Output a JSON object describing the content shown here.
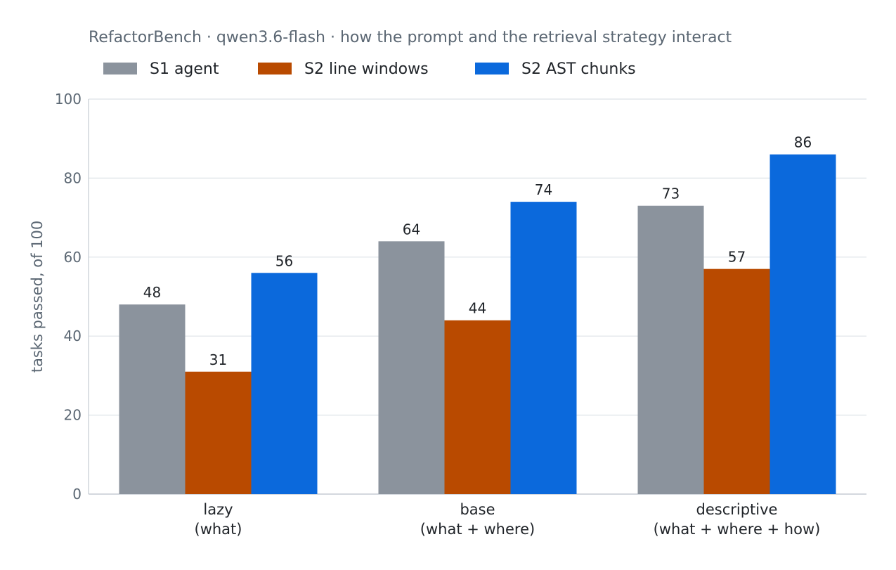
{
  "chart_data": {
    "type": "bar",
    "title": "RefactorBench · qwen3.6-flash · how the prompt and the retrieval strategy interact",
    "ylabel": "tasks passed, of 100",
    "xlabel": "",
    "ylim": [
      0,
      100
    ],
    "yticks": [
      0,
      20,
      40,
      60,
      80,
      100
    ],
    "grid": true,
    "legend_position": "top-left",
    "categories": [
      [
        "lazy",
        "(what)"
      ],
      [
        "base",
        "(what + where)"
      ],
      [
        "descriptive",
        "(what + where + how)"
      ]
    ],
    "series": [
      {
        "name": "S1 agent",
        "color": "#8b939d",
        "values": [
          48,
          64,
          73
        ]
      },
      {
        "name": "S2 line windows",
        "color": "#b94a00",
        "values": [
          31,
          44,
          57
        ]
      },
      {
        "name": "S2 AST chunks",
        "color": "#0b69dc",
        "values": [
          56,
          74,
          86
        ]
      }
    ]
  }
}
